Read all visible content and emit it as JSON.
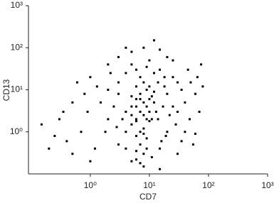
{
  "chart_data": {
    "type": "scatter",
    "x_label": "CD7",
    "y_label": "CD13",
    "log_x": true,
    "log_y": true,
    "color": "#000000",
    "xlim": [
      0.09,
      1000
    ],
    "ylim": [
      0.1,
      1000
    ],
    "xticks": [
      {
        "value": 1,
        "label": "10⁰"
      },
      {
        "value": 10,
        "label": "10¹"
      },
      {
        "value": 100,
        "label": "10²"
      },
      {
        "value": 1000,
        "label": "10³"
      }
    ],
    "yticks": [
      {
        "value": 1,
        "label": "10⁰"
      },
      {
        "value": 10,
        "label": "10¹"
      },
      {
        "value": 100,
        "label": "10²"
      },
      {
        "value": 1000,
        "label": "10³"
      }
    ],
    "x": [
      7,
      6,
      8,
      5,
      9,
      7,
      6,
      10,
      8,
      5,
      11,
      6,
      7,
      9,
      12,
      4,
      8,
      6,
      10,
      7,
      5,
      13,
      9,
      8,
      4,
      11,
      6,
      7,
      9,
      10,
      5,
      8,
      6,
      12,
      7,
      9,
      8,
      6,
      10,
      14,
      3,
      2.5,
      20,
      25,
      30,
      18,
      15,
      2,
      3,
      20,
      16,
      4,
      5,
      10,
      12,
      35,
      40,
      22,
      2,
      1.5,
      3,
      28,
      15,
      4,
      1.8,
      6,
      9,
      25,
      30,
      18,
      14,
      3.5,
      2.8,
      17,
      19,
      11,
      6,
      7,
      8,
      5,
      0.3,
      0.5,
      0.7,
      1,
      0.8,
      0.4,
      1.2,
      0.6,
      2,
      3,
      5,
      8,
      12,
      20,
      50,
      60,
      70,
      45,
      80,
      40,
      55,
      30,
      1,
      0.25,
      0.2,
      15,
      35,
      60,
      0.9,
      1.3,
      2.2,
      65,
      75,
      25,
      4,
      15,
      0.35,
      0.15,
      48,
      0.5
    ],
    "y": [
      3,
      2,
      5,
      1.5,
      4,
      8,
      6,
      3,
      1.2,
      4,
      7,
      0.8,
      0.5,
      10,
      5,
      3,
      2.5,
      12,
      1.8,
      1,
      7,
      3,
      0.7,
      15,
      1,
      2,
      4,
      6,
      2,
      6,
      2.5,
      0.9,
      1.8,
      9,
      20,
      0.4,
      0.3,
      0.35,
      12,
      2,
      8,
      4,
      8,
      4,
      15,
      20,
      30,
      2,
      0.5,
      1,
      0.6,
      25,
      40,
      50,
      25,
      10,
      5,
      2.5,
      10,
      5,
      15,
      1.5,
      0.4,
      0.4,
      1,
      30,
      35,
      20,
      3,
      12,
      15,
      2,
      1.3,
      4,
      0.8,
      0.25,
      0.22,
      0.18,
      0.15,
      0.2,
      2,
      5,
      1,
      20,
      8,
      0.6,
      0.4,
      15,
      40,
      60,
      80,
      100,
      150,
      60,
      15,
      8,
      3,
      30,
      12,
      1,
      0.5,
      0.3,
      0.2,
      0.8,
      0.4,
      0.13,
      0.6,
      0.9,
      3,
      12,
      25,
      20,
      40,
      50,
      100,
      90,
      3,
      1.5,
      2,
      0.3
    ]
  }
}
